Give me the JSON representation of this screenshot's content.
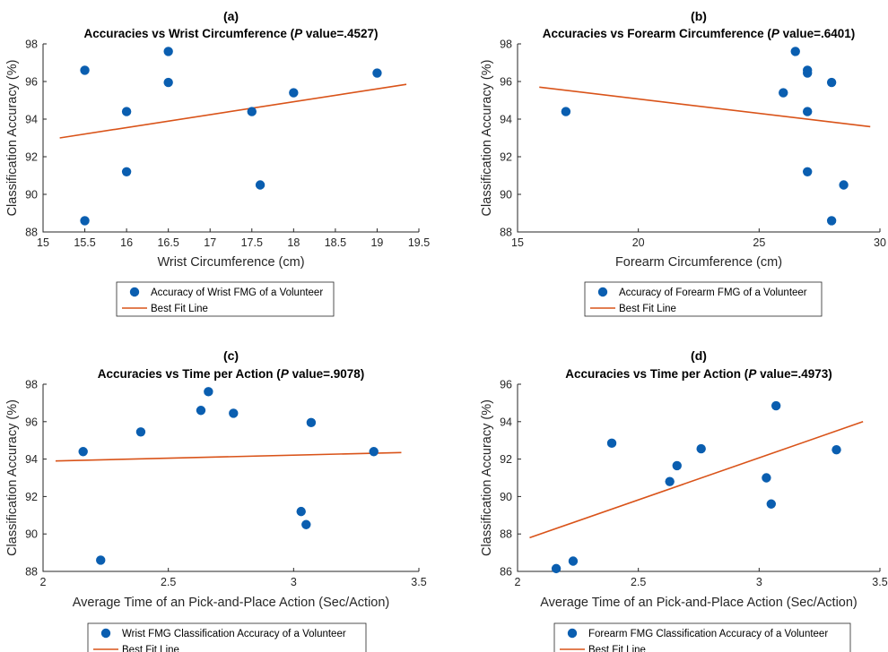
{
  "colors": {
    "marker": "#0a5eb0",
    "line": "#d95319",
    "axis": "#262626"
  },
  "chart_data": [
    {
      "type": "scatter",
      "panel_label": "(a)",
      "title_pre": "Accuracies vs Wrist Circumference (",
      "title_italic": "P",
      "title_post": " value=.4527)",
      "xlabel": "Wrist Circumference (cm)",
      "ylabel": "Classification Accuracy (%)",
      "xlim": [
        15,
        19.5
      ],
      "ylim": [
        88,
        98
      ],
      "xticks": [
        "15",
        "15.5",
        "16",
        "16.5",
        "17",
        "17.5",
        "18",
        "18.5",
        "19",
        "19.5"
      ],
      "yticks": [
        "88",
        "90",
        "92",
        "94",
        "96",
        "98"
      ],
      "points": [
        [
          15.5,
          96.6
        ],
        [
          15.5,
          88.6
        ],
        [
          16,
          94.4
        ],
        [
          16,
          91.2
        ],
        [
          16.5,
          97.6
        ],
        [
          16.5,
          95.95
        ],
        [
          17.5,
          94.4
        ],
        [
          17.6,
          90.5
        ],
        [
          18,
          95.4
        ],
        [
          19,
          96.45
        ]
      ],
      "fit_line": [
        [
          15.2,
          93.0
        ],
        [
          19.35,
          95.85
        ]
      ],
      "legend": [
        "Accuracy of Wrist FMG of a Volunteer",
        "Best Fit Line"
      ]
    },
    {
      "type": "scatter",
      "panel_label": "(b)",
      "title_pre": "Accuracies vs Forearm Circumference (",
      "title_italic": "P",
      "title_post": " value=.6401)",
      "xlabel": "Forearm Circumference (cm)",
      "ylabel": "Classification Accuracy (%)",
      "xlim": [
        15,
        30
      ],
      "ylim": [
        88,
        98
      ],
      "xticks": [
        "15",
        "20",
        "25",
        "30"
      ],
      "yticks": [
        "88",
        "90",
        "92",
        "94",
        "96",
        "98"
      ],
      "points": [
        [
          17,
          94.4
        ],
        [
          26.5,
          97.6
        ],
        [
          26,
          95.4
        ],
        [
          27,
          96.6
        ],
        [
          27,
          96.45
        ],
        [
          28,
          95.95
        ],
        [
          27,
          94.4
        ],
        [
          27,
          91.2
        ],
        [
          28.5,
          90.5
        ],
        [
          28,
          88.6
        ]
      ],
      "fit_line": [
        [
          15.9,
          95.7
        ],
        [
          29.6,
          93.6
        ]
      ],
      "legend": [
        "Accuracy of Forearm FMG of a Volunteer",
        "Best Fit Line"
      ]
    },
    {
      "type": "scatter",
      "panel_label": "(c)",
      "title_pre": "Accuracies vs Time per Action (",
      "title_italic": "P",
      "title_post": " value=.9078)",
      "xlabel": "Average Time of an Pick-and-Place Action (Sec/Action)",
      "ylabel": "Classification Accuracy (%)",
      "xlim": [
        2,
        3.5
      ],
      "ylim": [
        88,
        98
      ],
      "xticks": [
        "2",
        "2.5",
        "3",
        "3.5"
      ],
      "yticks": [
        "88",
        "90",
        "92",
        "94",
        "96",
        "98"
      ],
      "points": [
        [
          2.16,
          94.4
        ],
        [
          2.23,
          88.6
        ],
        [
          2.39,
          95.45
        ],
        [
          2.63,
          96.6
        ],
        [
          2.66,
          97.6
        ],
        [
          2.76,
          96.45
        ],
        [
          3.03,
          91.2
        ],
        [
          3.05,
          90.5
        ],
        [
          3.07,
          95.95
        ],
        [
          3.32,
          94.4
        ]
      ],
      "fit_line": [
        [
          2.05,
          93.9
        ],
        [
          3.43,
          94.35
        ]
      ],
      "legend": [
        "Wrist FMG Classification Accuracy of a Volunteer",
        "Best Fit Line"
      ]
    },
    {
      "type": "scatter",
      "panel_label": "(d)",
      "title_pre": "Accuracies vs Time per Action (",
      "title_italic": "P",
      "title_post": " value=.4973)",
      "xlabel": "Average Time of an Pick-and-Place Action (Sec/Action)",
      "ylabel": "Classification Accuracy (%)",
      "xlim": [
        2,
        3.5
      ],
      "ylim": [
        86,
        96
      ],
      "xticks": [
        "2",
        "2.5",
        "3",
        "3.5"
      ],
      "yticks": [
        "86",
        "88",
        "90",
        "92",
        "94",
        "96"
      ],
      "points": [
        [
          2.16,
          86.15
        ],
        [
          2.23,
          86.55
        ],
        [
          2.39,
          92.85
        ],
        [
          2.63,
          90.8
        ],
        [
          2.66,
          91.65
        ],
        [
          2.76,
          92.55
        ],
        [
          3.03,
          91.0
        ],
        [
          3.05,
          89.6
        ],
        [
          3.07,
          94.85
        ],
        [
          3.32,
          92.5
        ]
      ],
      "fit_line": [
        [
          2.05,
          87.8
        ],
        [
          3.43,
          94.0
        ]
      ],
      "legend": [
        "Forearm FMG Classification Accuracy of a Volunteer",
        "Best Fit Line"
      ]
    }
  ]
}
